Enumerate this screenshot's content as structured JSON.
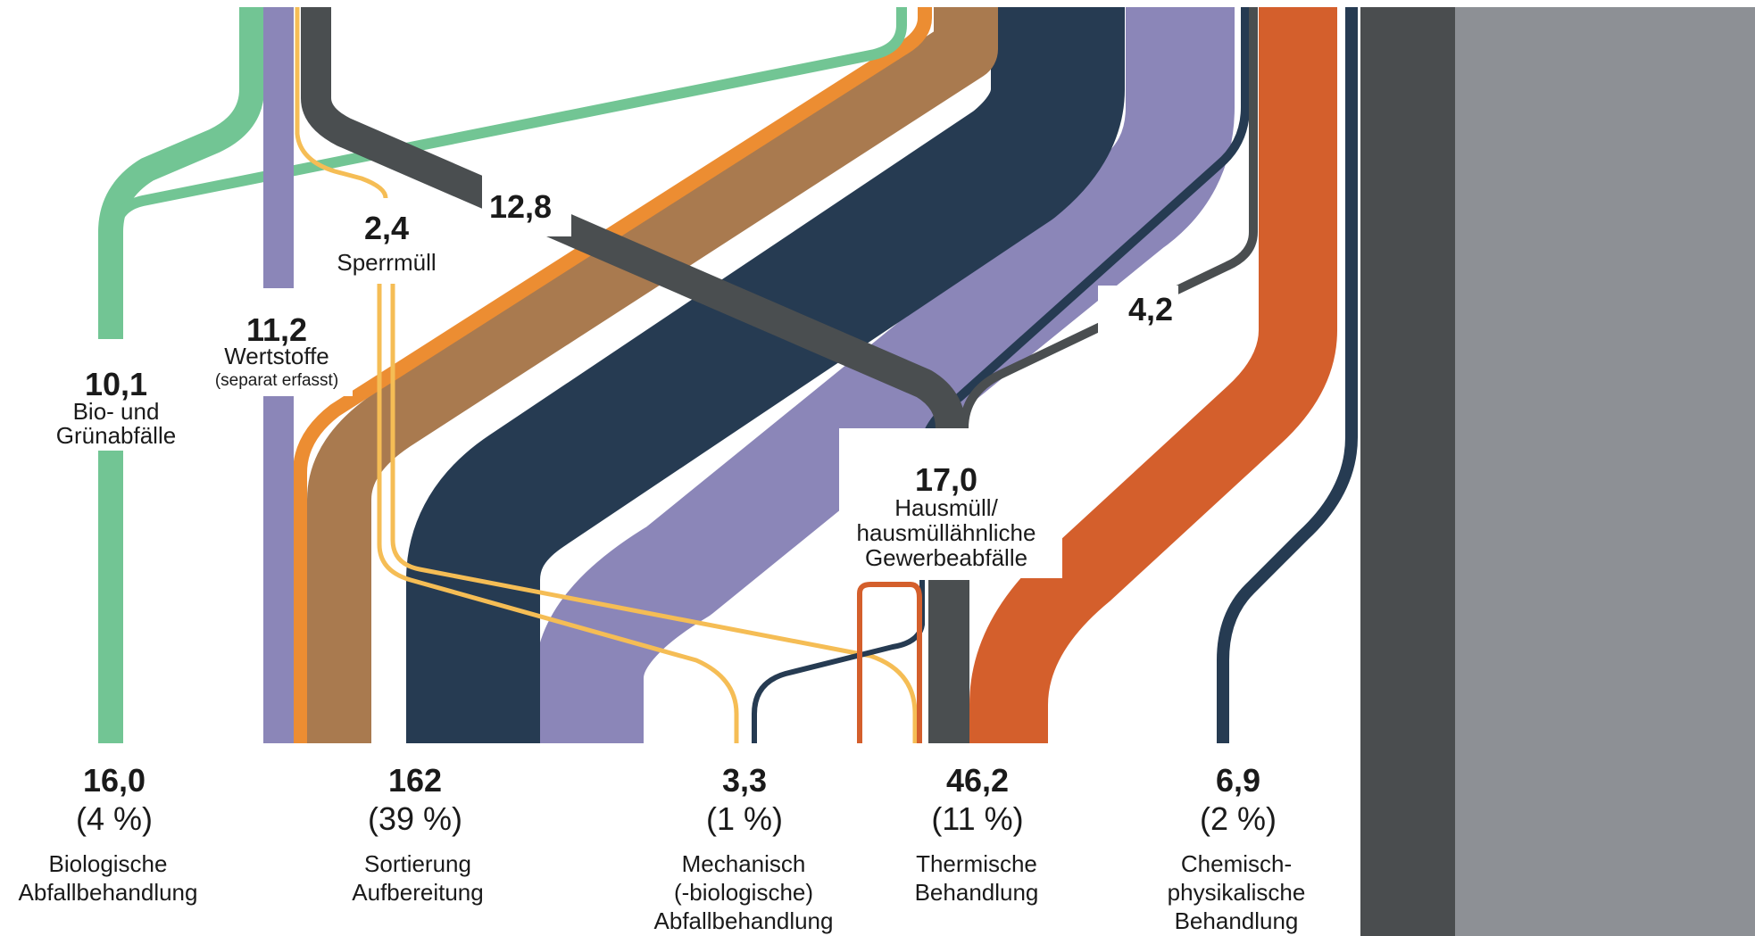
{
  "colors": {
    "bio": "#72c594",
    "wertstoffe": "#8b86b8",
    "sperr": "#f5bd55",
    "haus": "#4a4e50",
    "orange": "#ec8d32",
    "brown": "#a97a4f",
    "navy": "#263b52",
    "red": "#d45f2c",
    "panel_dark": "#4a4d4f",
    "panel_grey": "#8d9095"
  },
  "sources": {
    "bio": {
      "value": "10,1",
      "label_1": "Bio- und",
      "label_2": "Grünabfälle"
    },
    "wertstoffe": {
      "value": "11,2",
      "label_1": "Wertstoffe",
      "label_2": "(separat erfasst)"
    },
    "sperr": {
      "value": "2,4",
      "label_1": "Sperrmüll"
    },
    "haus": {
      "value": "17,0",
      "label_1": "Hausmüll/",
      "label_2": "hausmüllähnliche",
      "label_3": "Gewerbeabfälle"
    }
  },
  "flow_labels": {
    "haus_to_sortierung": "12,8",
    "haus_to_cp": "4,2"
  },
  "destinations": [
    {
      "value": "16,0",
      "share": "(4 %)",
      "label_1": "Biologische",
      "label_2": "Abfallbehandlung"
    },
    {
      "value": "162",
      "share": "(39 %)",
      "label_1": "Sortierung",
      "label_2": "Aufbereitung"
    },
    {
      "value": "3,3",
      "share": "(1 %)",
      "label_1": "Mechanisch",
      "label_2": "(-biologische)",
      "label_3": "Abfallbehandlung"
    },
    {
      "value": "46,2",
      "share": "(11 %)",
      "label_1": "Thermische",
      "label_2": "Behandlung"
    },
    {
      "value": "6,9",
      "share": "(2 %)",
      "label_1": "Chemisch-",
      "label_2": "physikalische",
      "label_3": "Behandlung"
    }
  ]
}
